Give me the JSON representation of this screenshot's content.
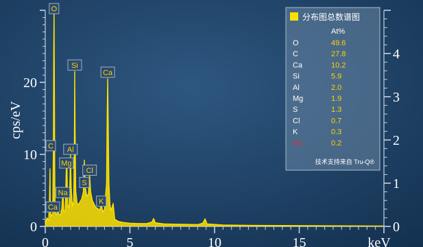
{
  "chart_data": {
    "type": "line",
    "title": "",
    "xlabel": "keV",
    "ylabel": "cps/eV",
    "xlim": [
      0,
      20
    ],
    "ylim": [
      0,
      30
    ],
    "y2lim": [
      0,
      5
    ],
    "x_ticks": [
      "0",
      "5",
      "10",
      "15"
    ],
    "y_ticks": [
      "0",
      "10",
      "20"
    ],
    "y2_ticks": [
      "0",
      "1",
      "2",
      "3",
      "4"
    ],
    "line_color": "#ffe100",
    "grid": false,
    "spectrum": [
      [
        0.0,
        0.3
      ],
      [
        0.1,
        1.2
      ],
      [
        0.2,
        0.8
      ],
      [
        0.25,
        3.5
      ],
      [
        0.28,
        8.0
      ],
      [
        0.3,
        2.0
      ],
      [
        0.36,
        1.4
      ],
      [
        0.44,
        1.8
      ],
      [
        0.48,
        11.0
      ],
      [
        0.5,
        24.0
      ],
      [
        0.52,
        30.0
      ],
      [
        0.54,
        20.0
      ],
      [
        0.56,
        8.0
      ],
      [
        0.58,
        2.5
      ],
      [
        0.65,
        1.6
      ],
      [
        0.72,
        1.8
      ],
      [
        0.76,
        2.2
      ],
      [
        0.8,
        1.7
      ],
      [
        0.9,
        1.6
      ],
      [
        0.98,
        2.5
      ],
      [
        1.04,
        5.0
      ],
      [
        1.1,
        2.0
      ],
      [
        1.18,
        2.2
      ],
      [
        1.24,
        7.8
      ],
      [
        1.28,
        8.5
      ],
      [
        1.32,
        3.0
      ],
      [
        1.4,
        2.6
      ],
      [
        1.46,
        6.5
      ],
      [
        1.49,
        10.0
      ],
      [
        1.53,
        5.5
      ],
      [
        1.6,
        2.8
      ],
      [
        1.68,
        3.5
      ],
      [
        1.72,
        11.0
      ],
      [
        1.74,
        21.5
      ],
      [
        1.76,
        14.0
      ],
      [
        1.8,
        5.0
      ],
      [
        1.88,
        3.2
      ],
      [
        1.96,
        3.0
      ],
      [
        2.05,
        3.4
      ],
      [
        2.15,
        3.8
      ],
      [
        2.25,
        4.8
      ],
      [
        2.31,
        9.2
      ],
      [
        2.36,
        5.5
      ],
      [
        2.45,
        4.2
      ],
      [
        2.55,
        4.5
      ],
      [
        2.62,
        7.2
      ],
      [
        2.68,
        4.8
      ],
      [
        2.78,
        3.6
      ],
      [
        2.9,
        3.0
      ],
      [
        3.0,
        2.6
      ],
      [
        3.1,
        2.5
      ],
      [
        3.2,
        2.2
      ],
      [
        3.31,
        3.0
      ],
      [
        3.4,
        2.0
      ],
      [
        3.5,
        2.4
      ],
      [
        3.62,
        6.0
      ],
      [
        3.66,
        16.0
      ],
      [
        3.69,
        20.5
      ],
      [
        3.72,
        14.0
      ],
      [
        3.76,
        6.0
      ],
      [
        3.82,
        3.0
      ],
      [
        3.9,
        2.2
      ],
      [
        4.01,
        3.2
      ],
      [
        4.1,
        1.0
      ],
      [
        4.3,
        0.7
      ],
      [
        4.6,
        0.55
      ],
      [
        5.0,
        0.45
      ],
      [
        5.5,
        0.4
      ],
      [
        6.0,
        0.4
      ],
      [
        6.3,
        0.6
      ],
      [
        6.4,
        1.1
      ],
      [
        6.5,
        0.5
      ],
      [
        7.0,
        0.35
      ],
      [
        8.0,
        0.3
      ],
      [
        9.0,
        0.25
      ],
      [
        9.3,
        0.45
      ],
      [
        9.44,
        1.05
      ],
      [
        9.55,
        0.35
      ],
      [
        10.5,
        0.2
      ],
      [
        12.0,
        0.15
      ],
      [
        14.0,
        0.12
      ],
      [
        16.0,
        0.1
      ],
      [
        18.0,
        0.08
      ],
      [
        20.0,
        0.05
      ]
    ],
    "peak_labels": [
      {
        "label": "O",
        "x": 0.52,
        "y": 29.5
      },
      {
        "label": "Si",
        "x": 1.74,
        "y": 21.5
      },
      {
        "label": "Ca",
        "x": 3.69,
        "y": 20.5
      },
      {
        "label": "C",
        "x": 0.28,
        "y": 10.3
      },
      {
        "label": "Al",
        "x": 1.49,
        "y": 9.8
      },
      {
        "label": "Mg",
        "x": 1.25,
        "y": 7.9
      },
      {
        "label": "Cl",
        "x": 2.62,
        "y": 6.9
      },
      {
        "label": "S",
        "x": 2.31,
        "y": 5.2
      },
      {
        "label": "Na",
        "x": 1.04,
        "y": 3.8
      },
      {
        "label": "K",
        "x": 3.31,
        "y": 2.6
      },
      {
        "label": "Ca",
        "x": 0.34,
        "y": 1.8
      }
    ],
    "legend": {
      "title": "分布图总数谱图",
      "swatch_color": "#ffe100",
      "column_header": "At%",
      "rows": [
        {
          "element": "O",
          "value": "49.6",
          "color": "#ffffff"
        },
        {
          "element": "C",
          "value": "27.8",
          "color": "#ffffff"
        },
        {
          "element": "Ca",
          "value": "10.2",
          "color": "#ffffff"
        },
        {
          "element": "Si",
          "value": "5.9",
          "color": "#ffffff"
        },
        {
          "element": "Al",
          "value": "2.0",
          "color": "#ffffff"
        },
        {
          "element": "Mg",
          "value": "1.9",
          "color": "#ffffff"
        },
        {
          "element": "S",
          "value": "1.3",
          "color": "#ffffff"
        },
        {
          "element": "Cl",
          "value": "0.7",
          "color": "#ffffff"
        },
        {
          "element": "K",
          "value": "0.3",
          "color": "#ffffff"
        },
        {
          "element": "Na",
          "value": "0.2",
          "color": "#c8363a"
        }
      ],
      "footer": "技术支持来自 Tru-Q®",
      "placement": "top-right"
    }
  }
}
